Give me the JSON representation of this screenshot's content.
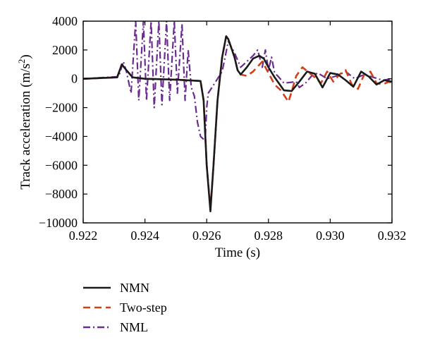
{
  "chart_data": {
    "type": "line",
    "title": "",
    "xlabel": "Time (s)",
    "ylabel": "Track acceleration (m/s²)",
    "ylabel_main": "Track acceleration (m/s",
    "ylabel_sup": "2",
    "ylabel_close": ")",
    "xlim": [
      0.922,
      0.932
    ],
    "ylim": [
      -10000,
      4000
    ],
    "xticks": [
      0.922,
      0.924,
      0.926,
      0.928,
      0.93,
      0.932
    ],
    "xtick_labels": [
      "0.922",
      "0.924",
      "0.926",
      "0.928",
      "0.930",
      "0.932"
    ],
    "yticks": [
      -10000,
      -8000,
      -6000,
      -4000,
      -2000,
      0,
      2000,
      4000
    ],
    "ytick_labels": [
      "−10000",
      "−8000",
      "−6000",
      "−4000",
      "−2000",
      "0",
      "2000",
      "4000"
    ],
    "grid": false,
    "legend_position": "below",
    "series": [
      {
        "name": "NMN",
        "color": "#1a1a1a",
        "dash": "solid",
        "x": [
          0.922,
          0.9231,
          0.92325,
          0.9234,
          0.9236,
          0.924,
          0.925,
          0.9258,
          0.9259,
          0.926,
          0.92612,
          0.92622,
          0.92635,
          0.9265,
          0.92663,
          0.9267,
          0.9269,
          0.927,
          0.9271,
          0.9273,
          0.9275,
          0.9277,
          0.92785,
          0.928,
          0.9282,
          0.9285,
          0.92875,
          0.929,
          0.92925,
          0.9295,
          0.92975,
          0.93,
          0.93025,
          0.9305,
          0.93075,
          0.931,
          0.93125,
          0.9315,
          0.93175,
          0.932
        ],
        "y": [
          0,
          100,
          1000,
          600,
          100,
          0,
          -60,
          -150,
          -1500,
          -6000,
          -9200,
          -6000,
          -1500,
          1500,
          2950,
          2750,
          1500,
          600,
          300,
          800,
          1400,
          1600,
          1400,
          800,
          100,
          -800,
          -850,
          -200,
          500,
          350,
          -600,
          400,
          300,
          -100,
          -550,
          500,
          150,
          -400,
          -100,
          -200
        ]
      },
      {
        "name": "Two-step",
        "color": "#d2401b",
        "dash": "dashed",
        "x": [
          0.922,
          0.9231,
          0.92325,
          0.9234,
          0.9236,
          0.924,
          0.925,
          0.9258,
          0.9259,
          0.926,
          0.92612,
          0.92622,
          0.92635,
          0.9265,
          0.92663,
          0.9267,
          0.9269,
          0.927,
          0.9271,
          0.9273,
          0.9275,
          0.9278,
          0.928,
          0.9282,
          0.9284,
          0.92865,
          0.9289,
          0.9291,
          0.9295,
          0.9297,
          0.9299,
          0.9301,
          0.9303,
          0.9305,
          0.9307,
          0.9309,
          0.9311,
          0.9313,
          0.9315,
          0.9317,
          0.9319,
          0.932
        ],
        "y": [
          0,
          100,
          1000,
          600,
          100,
          0,
          -60,
          -150,
          -1500,
          -6000,
          -9000,
          -6000,
          -1500,
          1500,
          2950,
          2750,
          1500,
          600,
          300,
          200,
          500,
          1200,
          400,
          -400,
          -800,
          -1600,
          200,
          800,
          100,
          -300,
          500,
          -200,
          300,
          600,
          -400,
          -700,
          300,
          500,
          -300,
          -400,
          -200,
          -300
        ]
      },
      {
        "name": "NML",
        "color": "#6a2c91",
        "dash": "dashdot",
        "x": [
          0.922,
          0.92315,
          0.9233,
          0.9234,
          0.92355,
          0.9237,
          0.9238,
          0.92395,
          0.92405,
          0.9242,
          0.9243,
          0.92445,
          0.92455,
          0.9247,
          0.9248,
          0.92495,
          0.92505,
          0.9252,
          0.9253,
          0.9254,
          0.9255,
          0.9256,
          0.9257,
          0.9258,
          0.92595,
          0.926,
          0.92605,
          0.9262,
          0.9265,
          0.9267,
          0.9269,
          0.9271,
          0.9273,
          0.9275,
          0.92765,
          0.9278,
          0.9279,
          0.928,
          0.9281,
          0.9282,
          0.9283,
          0.9285,
          0.9289,
          0.929,
          0.9292,
          0.9294,
          0.9296,
          0.9299,
          0.9302,
          0.9305,
          0.9308,
          0.9311,
          0.9314,
          0.9317,
          0.932
        ],
        "y": [
          0,
          150,
          1200,
          500,
          -1000,
          4000,
          -1500,
          4000,
          -1500,
          4000,
          -2000,
          4000,
          -1800,
          4000,
          -1500,
          4000,
          -1000,
          3800,
          -1500,
          2000,
          -600,
          -1200,
          -3000,
          -4000,
          -4300,
          -2000,
          -1000,
          -500,
          500,
          2600,
          1800,
          800,
          1200,
          1600,
          2000,
          800,
          2000,
          600,
          1500,
          400,
          200,
          -300,
          -200,
          -600,
          -300,
          200,
          400,
          0,
          200,
          500,
          0,
          300,
          100,
          -100,
          0
        ]
      }
    ]
  }
}
